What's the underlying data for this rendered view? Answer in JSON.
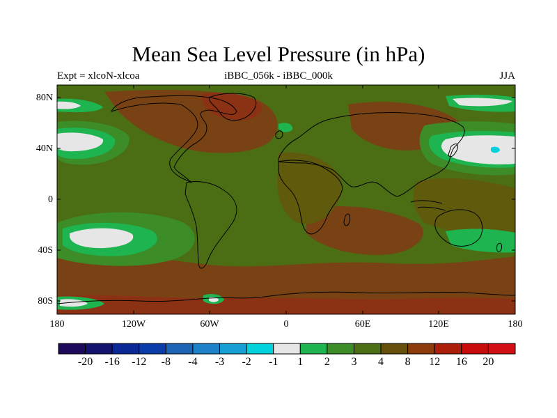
{
  "title": "Mean Sea Level Pressure (in hPa)",
  "subtitle_left": "Expt = xlcoN-xlcoa",
  "subtitle_center": "iBBC_056k - iBBC_000k",
  "subtitle_right": "JJA",
  "lat_labels": [
    "80N",
    "40N",
    "0",
    "40S",
    "80S"
  ],
  "lon_labels": [
    "180",
    "120W",
    "60W",
    "0",
    "60E",
    "120E",
    "180"
  ],
  "colorbar": {
    "colors": [
      "#1e0a5a",
      "#14146e",
      "#0a2896",
      "#0a3caa",
      "#1e64b4",
      "#1e82c8",
      "#14a0d2",
      "#00d2dc",
      "#e6e6e6",
      "#1eb450",
      "#3c8c28",
      "#4b6e14",
      "#64500a",
      "#8c3c0a",
      "#aa1e0a",
      "#c80a0a",
      "#d20f14"
    ],
    "labels": [
      "-20",
      "-16",
      "-12",
      "-8",
      "-4",
      "-3",
      "-2",
      "-1",
      "1",
      "2",
      "3",
      "4",
      "8",
      "12",
      "16",
      "20"
    ]
  },
  "palette": {
    "base_green": "#4b6e14",
    "olive": "#5f5a0c",
    "brown": "#784214",
    "red_brown": "#8c3214",
    "mid_green": "#3c8c28",
    "bright_green": "#1eb450",
    "white": "#e6e6e6",
    "cyan": "#00d2dc",
    "coast": "#000000"
  }
}
